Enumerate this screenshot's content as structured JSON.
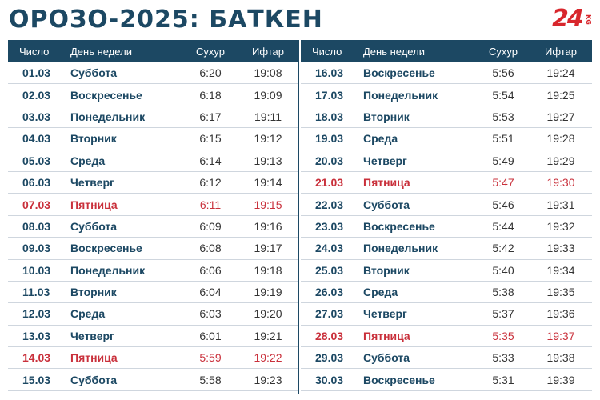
{
  "title": "ОРОЗО-2025: БАТКЕН",
  "logo": {
    "number": "24",
    "suffix": "KG"
  },
  "colors": {
    "header_bg": "#1c4863",
    "friday": "#c9303b",
    "text": "#1c4863"
  },
  "headers": {
    "date": "Число",
    "day": "День недели",
    "suhur": "Сухур",
    "iftar": "Ифтар"
  },
  "left_rows": [
    {
      "date": "01.03",
      "day": "Суббота",
      "suhur": "6:20",
      "iftar": "19:08"
    },
    {
      "date": "02.03",
      "day": "Воскресенье",
      "suhur": "6:18",
      "iftar": "19:09"
    },
    {
      "date": "03.03",
      "day": "Понедельник",
      "suhur": "6:17",
      "iftar": "19:11"
    },
    {
      "date": "04.03",
      "day": "Вторник",
      "suhur": "6:15",
      "iftar": "19:12"
    },
    {
      "date": "05.03",
      "day": "Среда",
      "suhur": "6:14",
      "iftar": "19:13"
    },
    {
      "date": "06.03",
      "day": "Четверг",
      "suhur": "6:12",
      "iftar": "19:14"
    },
    {
      "date": "07.03",
      "day": "Пятница",
      "suhur": "6:11",
      "iftar": "19:15"
    },
    {
      "date": "08.03",
      "day": "Суббота",
      "suhur": "6:09",
      "iftar": "19:16"
    },
    {
      "date": "09.03",
      "day": "Воскресенье",
      "suhur": "6:08",
      "iftar": "19:17"
    },
    {
      "date": "10.03",
      "day": "Понедельник",
      "suhur": "6:06",
      "iftar": "19:18"
    },
    {
      "date": "11.03",
      "day": "Вторник",
      "suhur": "6:04",
      "iftar": "19:19"
    },
    {
      "date": "12.03",
      "day": "Среда",
      "suhur": "6:03",
      "iftar": "19:20"
    },
    {
      "date": "13.03",
      "day": "Четверг",
      "suhur": "6:01",
      "iftar": "19:21"
    },
    {
      "date": "14.03",
      "day": "Пятница",
      "suhur": "5:59",
      "iftar": "19:22"
    },
    {
      "date": "15.03",
      "day": "Суббота",
      "suhur": "5:58",
      "iftar": "19:23"
    }
  ],
  "right_rows": [
    {
      "date": "16.03",
      "day": "Воскресенье",
      "suhur": "5:56",
      "iftar": "19:24"
    },
    {
      "date": "17.03",
      "day": "Понедельник",
      "suhur": "5:54",
      "iftar": "19:25"
    },
    {
      "date": "18.03",
      "day": "Вторник",
      "suhur": "5:53",
      "iftar": "19:27"
    },
    {
      "date": "19.03",
      "day": "Среда",
      "suhur": "5:51",
      "iftar": "19:28"
    },
    {
      "date": "20.03",
      "day": "Четверг",
      "suhur": "5:49",
      "iftar": "19:29"
    },
    {
      "date": "21.03",
      "day": "Пятница",
      "suhur": "5:47",
      "iftar": "19:30"
    },
    {
      "date": "22.03",
      "day": "Суббота",
      "suhur": "5:46",
      "iftar": "19:31"
    },
    {
      "date": "23.03",
      "day": "Воскресенье",
      "suhur": "5:44",
      "iftar": "19:32"
    },
    {
      "date": "24.03",
      "day": "Понедельник",
      "suhur": "5:42",
      "iftar": "19:33"
    },
    {
      "date": "25.03",
      "day": "Вторник",
      "suhur": "5:40",
      "iftar": "19:34"
    },
    {
      "date": "26.03",
      "day": "Среда",
      "suhur": "5:38",
      "iftar": "19:35"
    },
    {
      "date": "27.03",
      "day": "Четверг",
      "suhur": "5:37",
      "iftar": "19:36"
    },
    {
      "date": "28.03",
      "day": "Пятница",
      "suhur": "5:35",
      "iftar": "19:37"
    },
    {
      "date": "29.03",
      "day": "Суббота",
      "suhur": "5:33",
      "iftar": "19:38"
    },
    {
      "date": "30.03",
      "day": "Воскресенье",
      "suhur": "5:31",
      "iftar": "19:39"
    }
  ]
}
